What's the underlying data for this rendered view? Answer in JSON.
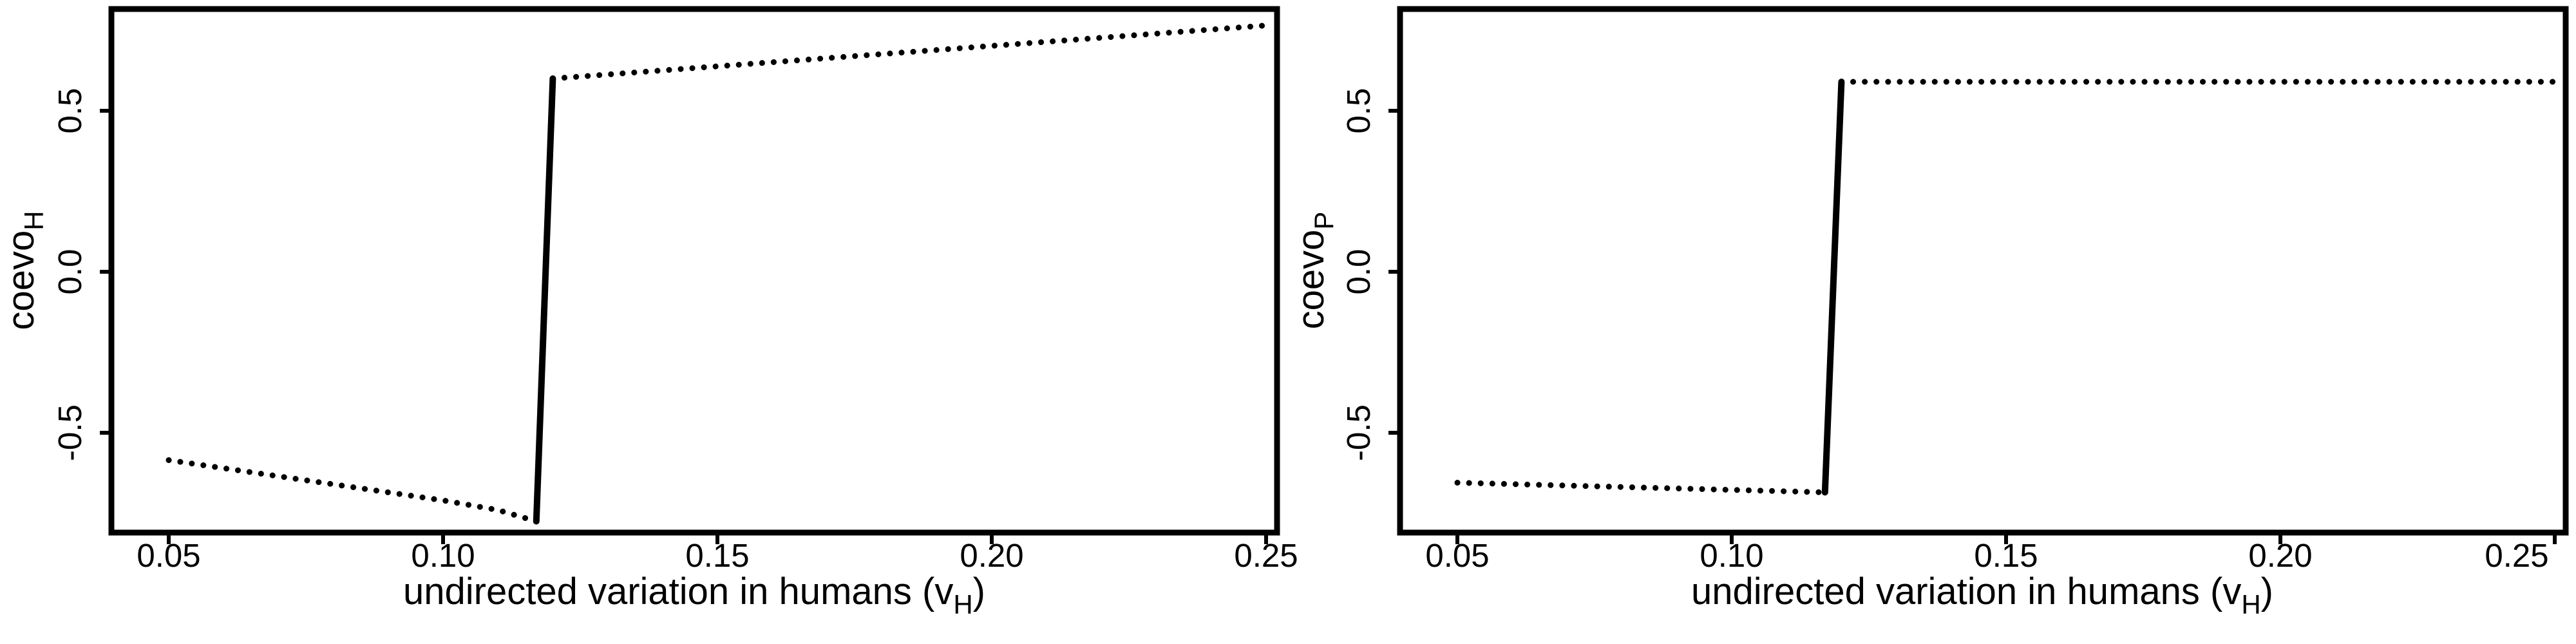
{
  "chart_data": [
    {
      "type": "scatter",
      "xlabel": {
        "text": "undirected variation in humans (v",
        "sub": "H",
        "suffix": ")"
      },
      "ylabel": {
        "text": "coevo",
        "sub": "H"
      },
      "xlim": [
        0.05,
        0.25
      ],
      "ylim": [
        -0.75,
        0.75
      ],
      "xticks": [
        "0.05",
        "0.10",
        "0.15",
        "0.20",
        "0.25"
      ],
      "yticks": [
        "-0.5",
        "0.0",
        "0.5"
      ],
      "grid": false,
      "series": [
        {
          "style": "dotted",
          "x": [
            0.05,
            0.06,
            0.07,
            0.08,
            0.09,
            0.1,
            0.11,
            0.117
          ],
          "y": [
            -0.585,
            -0.61,
            -0.635,
            -0.66,
            -0.685,
            -0.71,
            -0.74,
            -0.775
          ]
        },
        {
          "style": "solid",
          "x": [
            0.117,
            0.12
          ],
          "y": [
            -0.775,
            0.6
          ]
        },
        {
          "style": "dotted",
          "x": [
            0.12,
            0.25
          ],
          "y": [
            0.6,
            0.765
          ]
        }
      ]
    },
    {
      "type": "scatter",
      "xlabel": {
        "text": "undirected variation in humans (v",
        "sub": "H",
        "suffix": ")"
      },
      "ylabel": {
        "text": "coevo",
        "sub": "P"
      },
      "xlim": [
        0.05,
        0.25
      ],
      "ylim": [
        -0.75,
        0.75
      ],
      "xticks": [
        "0.05",
        "0.10",
        "0.15",
        "0.20",
        "0.25"
      ],
      "yticks": [
        "-0.5",
        "0.0",
        "0.5"
      ],
      "grid": false,
      "series": [
        {
          "style": "dotted",
          "x": [
            0.05,
            0.117
          ],
          "y": [
            -0.655,
            -0.685
          ]
        },
        {
          "style": "solid",
          "x": [
            0.117,
            0.12
          ],
          "y": [
            -0.685,
            0.59
          ]
        },
        {
          "style": "dotted",
          "x": [
            0.12,
            0.25
          ],
          "y": [
            0.59,
            0.59
          ]
        }
      ]
    }
  ]
}
